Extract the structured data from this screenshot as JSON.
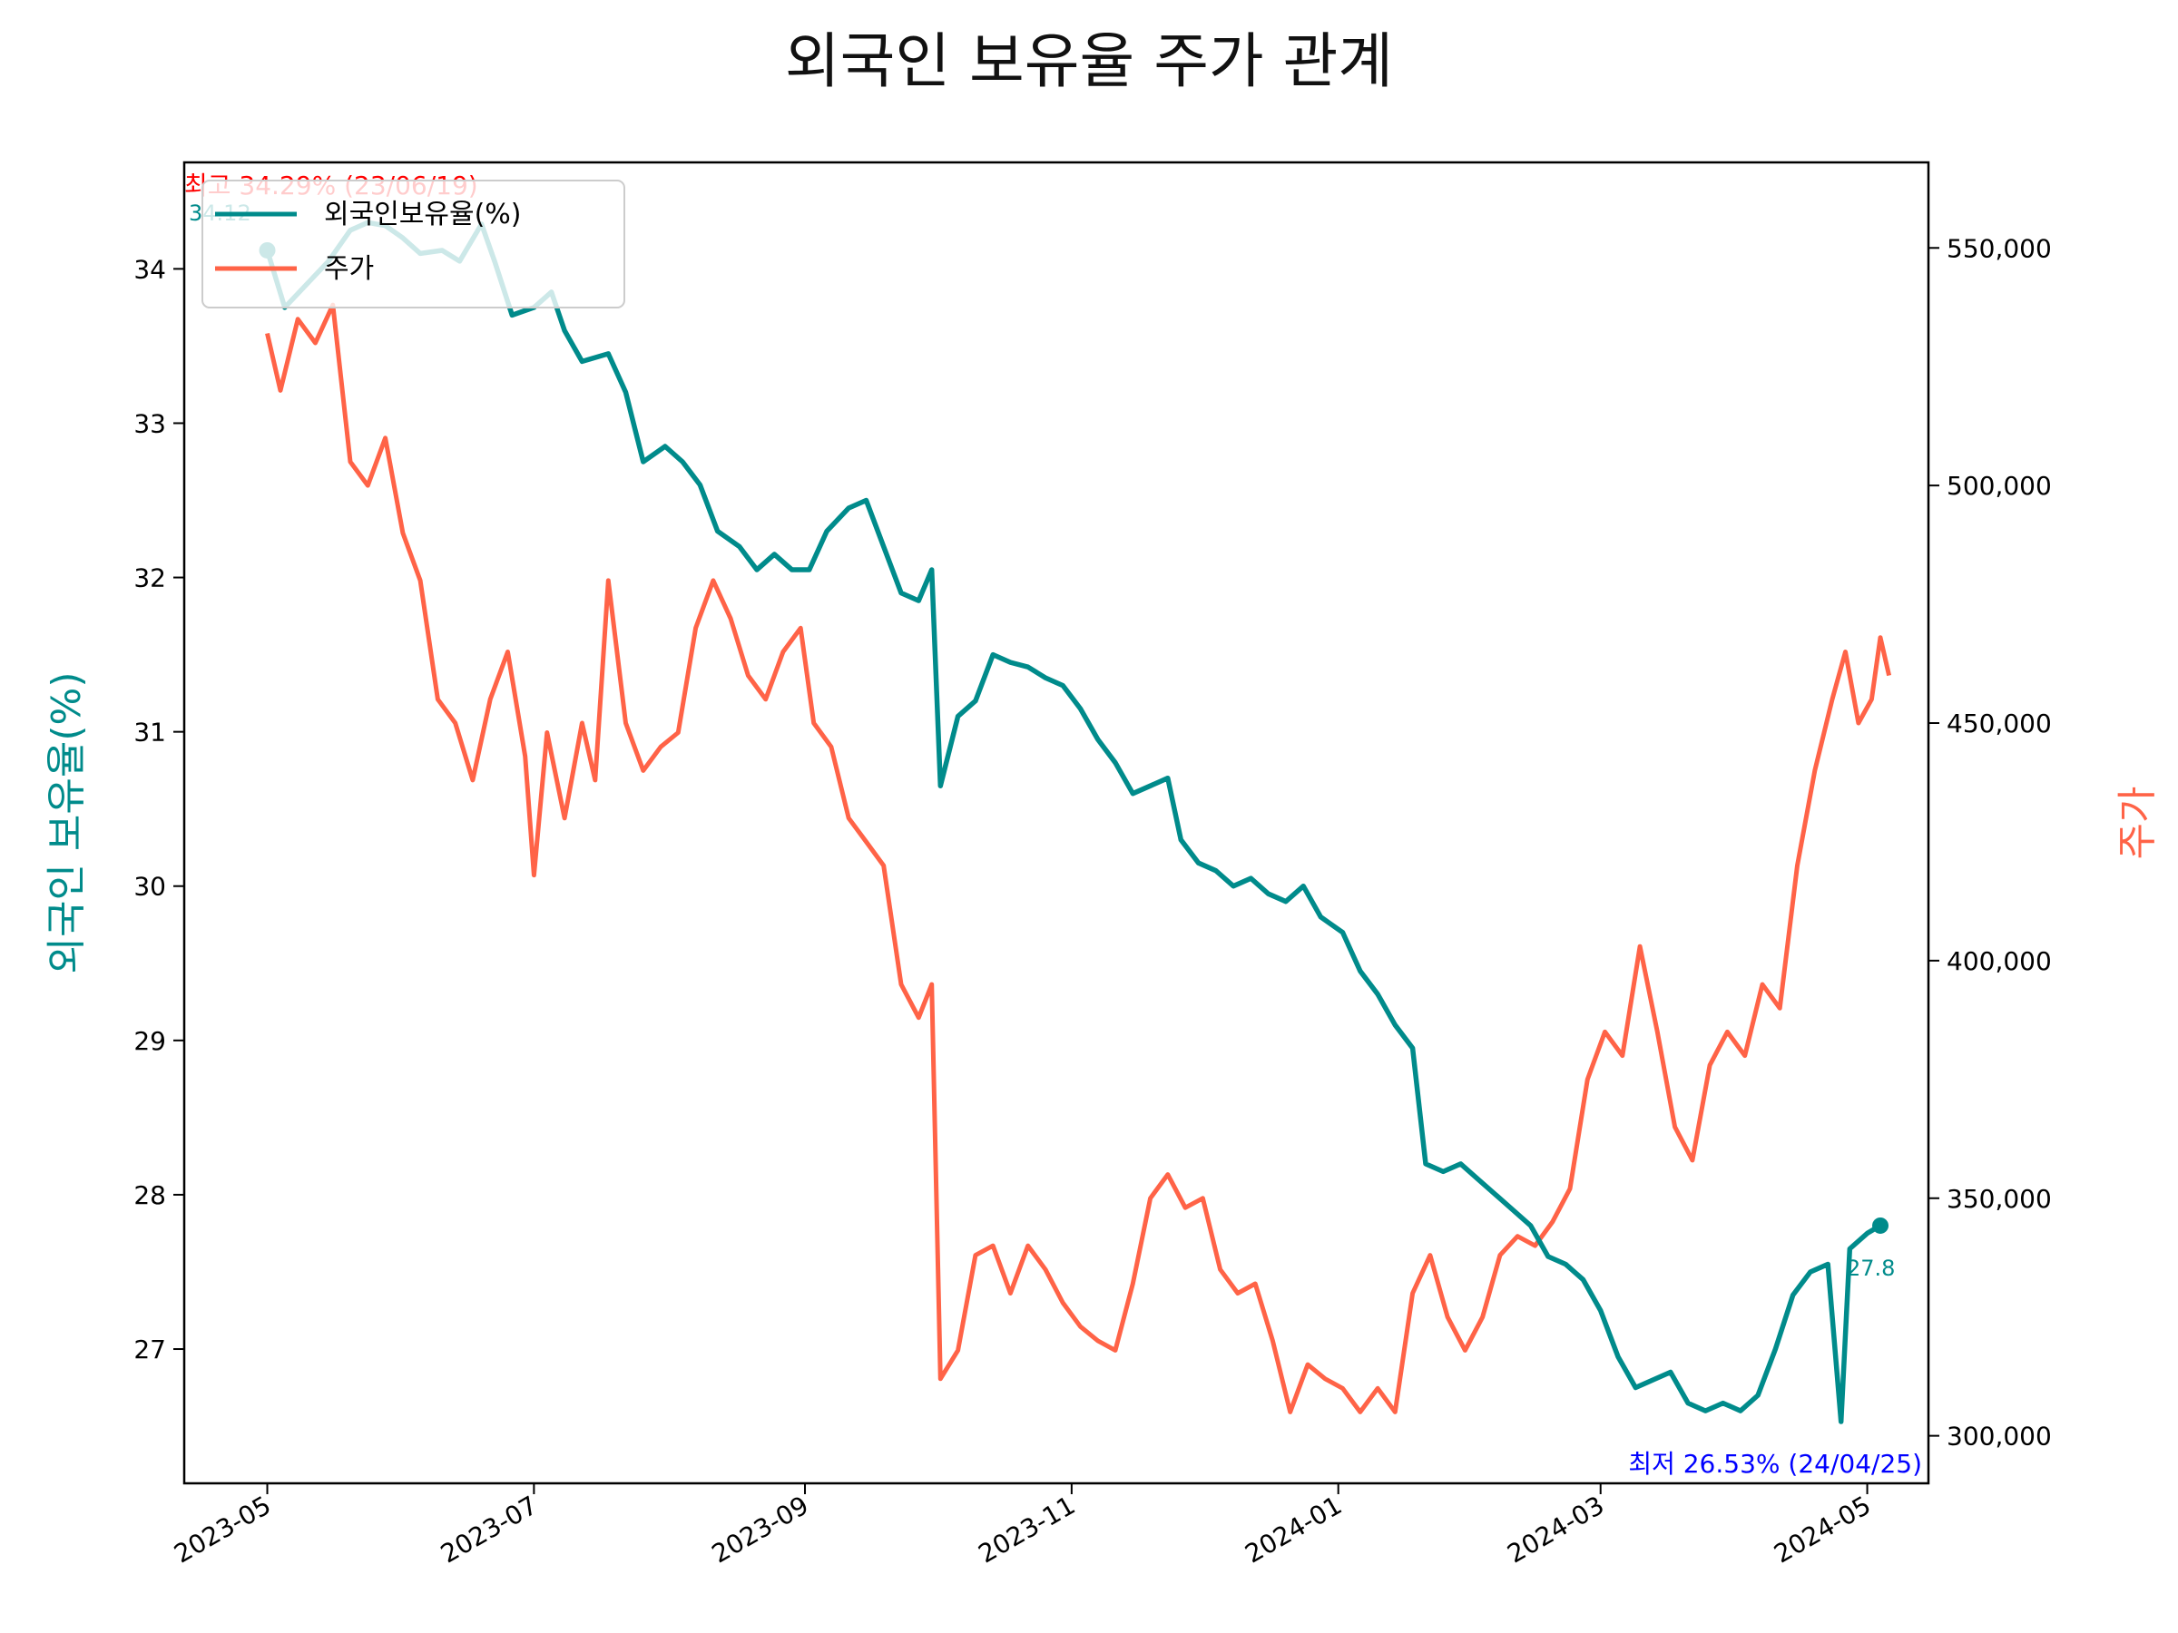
{
  "chart_data": {
    "type": "line",
    "title": "외국인 보유율 주가 관계",
    "y_left_label": "외국인 보유율(%)",
    "y_right_label": "주가",
    "y_left_range": [
      26.13,
      34.69
    ],
    "y_right_range": [
      290000,
      568000
    ],
    "x_range": [
      "2023-04-12",
      "2024-05-15"
    ],
    "x_ticks": [
      "2023-05",
      "2023-07",
      "2023-09",
      "2023-11",
      "2024-01",
      "2024-03",
      "2024-05"
    ],
    "y_left_ticks": [
      "27",
      "28",
      "29",
      "30",
      "31",
      "32",
      "33",
      "34"
    ],
    "y_right_ticks": [
      "300,000",
      "350,000",
      "400,000",
      "450,000",
      "500,000",
      "550,000"
    ],
    "grid": false,
    "legend_position": "upper-left",
    "colors": {
      "holding": "#008b8b",
      "price": "#ff6347",
      "max_annotation": "#ff0000",
      "min_annotation": "#0000ff"
    },
    "series": [
      {
        "name": "외국인보유율(%)",
        "axis": "left",
        "points": [
          [
            "2023-05-01",
            34.12
          ],
          [
            "2023-05-05",
            33.75
          ],
          [
            "2023-05-10",
            33.9
          ],
          [
            "2023-05-15",
            34.05
          ],
          [
            "2023-05-20",
            34.25
          ],
          [
            "2023-05-24",
            34.3
          ],
          [
            "2023-05-28",
            34.28
          ],
          [
            "2023-06-01",
            34.2
          ],
          [
            "2023-06-05",
            34.1
          ],
          [
            "2023-06-10",
            34.12
          ],
          [
            "2023-06-14",
            34.05
          ],
          [
            "2023-06-19",
            34.29
          ],
          [
            "2023-06-22",
            34.05
          ],
          [
            "2023-06-26",
            33.7
          ],
          [
            "2023-07-01",
            33.75
          ],
          [
            "2023-07-05",
            33.85
          ],
          [
            "2023-07-08",
            33.6
          ],
          [
            "2023-07-12",
            33.4
          ],
          [
            "2023-07-18",
            33.45
          ],
          [
            "2023-07-22",
            33.2
          ],
          [
            "2023-07-26",
            32.75
          ],
          [
            "2023-07-31",
            32.85
          ],
          [
            "2023-08-04",
            32.75
          ],
          [
            "2023-08-08",
            32.6
          ],
          [
            "2023-08-12",
            32.3
          ],
          [
            "2023-08-17",
            32.2
          ],
          [
            "2023-08-21",
            32.05
          ],
          [
            "2023-08-25",
            32.15
          ],
          [
            "2023-08-29",
            32.05
          ],
          [
            "2023-09-02",
            32.05
          ],
          [
            "2023-09-06",
            32.3
          ],
          [
            "2023-09-11",
            32.45
          ],
          [
            "2023-09-15",
            32.5
          ],
          [
            "2023-09-19",
            32.2
          ],
          [
            "2023-09-23",
            31.9
          ],
          [
            "2023-09-27",
            31.85
          ],
          [
            "2023-09-30",
            32.05
          ],
          [
            "2023-10-02",
            30.65
          ],
          [
            "2023-10-06",
            31.1
          ],
          [
            "2023-10-10",
            31.2
          ],
          [
            "2023-10-14",
            31.5
          ],
          [
            "2023-10-18",
            31.45
          ],
          [
            "2023-10-22",
            31.42
          ],
          [
            "2023-10-26",
            31.35
          ],
          [
            "2023-10-30",
            31.3
          ],
          [
            "2023-11-03",
            31.15
          ],
          [
            "2023-11-07",
            30.95
          ],
          [
            "2023-11-11",
            30.8
          ],
          [
            "2023-11-15",
            30.6
          ],
          [
            "2023-11-19",
            30.65
          ],
          [
            "2023-11-23",
            30.7
          ],
          [
            "2023-11-26",
            30.3
          ],
          [
            "2023-11-30",
            30.15
          ],
          [
            "2023-12-04",
            30.1
          ],
          [
            "2023-12-08",
            30.0
          ],
          [
            "2023-12-12",
            30.05
          ],
          [
            "2023-12-16",
            29.95
          ],
          [
            "2023-12-20",
            29.9
          ],
          [
            "2023-12-24",
            30.0
          ],
          [
            "2023-12-28",
            29.8
          ],
          [
            "2024-01-02",
            29.7
          ],
          [
            "2024-01-06",
            29.45
          ],
          [
            "2024-01-10",
            29.3
          ],
          [
            "2024-01-14",
            29.1
          ],
          [
            "2024-01-18",
            28.95
          ],
          [
            "2024-01-21",
            28.2
          ],
          [
            "2024-01-25",
            28.15
          ],
          [
            "2024-01-29",
            28.2
          ],
          [
            "2024-02-02",
            28.1
          ],
          [
            "2024-02-06",
            28.0
          ],
          [
            "2024-02-10",
            27.9
          ],
          [
            "2024-02-14",
            27.8
          ],
          [
            "2024-02-18",
            27.6
          ],
          [
            "2024-02-22",
            27.55
          ],
          [
            "2024-02-26",
            27.45
          ],
          [
            "2024-03-01",
            27.25
          ],
          [
            "2024-03-05",
            26.95
          ],
          [
            "2024-03-09",
            26.75
          ],
          [
            "2024-03-13",
            26.8
          ],
          [
            "2024-03-17",
            26.85
          ],
          [
            "2024-03-21",
            26.65
          ],
          [
            "2024-03-25",
            26.6
          ],
          [
            "2024-03-29",
            26.65
          ],
          [
            "2024-04-02",
            26.6
          ],
          [
            "2024-04-06",
            26.7
          ],
          [
            "2024-04-10",
            27.0
          ],
          [
            "2024-04-14",
            27.35
          ],
          [
            "2024-04-18",
            27.5
          ],
          [
            "2024-04-22",
            27.55
          ],
          [
            "2024-04-25",
            26.53
          ],
          [
            "2024-04-27",
            27.65
          ],
          [
            "2024-05-01",
            27.75
          ],
          [
            "2024-05-04",
            27.8
          ]
        ]
      },
      {
        "name": "주가",
        "axis": "right",
        "points": [
          [
            "2023-05-01",
            532000
          ],
          [
            "2023-05-04",
            520000
          ],
          [
            "2023-05-08",
            535000
          ],
          [
            "2023-05-12",
            530000
          ],
          [
            "2023-05-16",
            538000
          ],
          [
            "2023-05-20",
            505000
          ],
          [
            "2023-05-24",
            500000
          ],
          [
            "2023-05-28",
            510000
          ],
          [
            "2023-06-01",
            490000
          ],
          [
            "2023-06-05",
            480000
          ],
          [
            "2023-06-09",
            455000
          ],
          [
            "2023-06-13",
            450000
          ],
          [
            "2023-06-17",
            438000
          ],
          [
            "2023-06-21",
            455000
          ],
          [
            "2023-06-25",
            465000
          ],
          [
            "2023-06-29",
            443000
          ],
          [
            "2023-07-01",
            418000
          ],
          [
            "2023-07-04",
            448000
          ],
          [
            "2023-07-08",
            430000
          ],
          [
            "2023-07-12",
            450000
          ],
          [
            "2023-07-15",
            438000
          ],
          [
            "2023-07-18",
            480000
          ],
          [
            "2023-07-22",
            450000
          ],
          [
            "2023-07-26",
            440000
          ],
          [
            "2023-07-30",
            445000
          ],
          [
            "2023-08-03",
            448000
          ],
          [
            "2023-08-07",
            470000
          ],
          [
            "2023-08-11",
            480000
          ],
          [
            "2023-08-15",
            472000
          ],
          [
            "2023-08-19",
            460000
          ],
          [
            "2023-08-23",
            455000
          ],
          [
            "2023-08-27",
            465000
          ],
          [
            "2023-08-31",
            470000
          ],
          [
            "2023-09-03",
            450000
          ],
          [
            "2023-09-07",
            445000
          ],
          [
            "2023-09-11",
            430000
          ],
          [
            "2023-09-15",
            425000
          ],
          [
            "2023-09-19",
            420000
          ],
          [
            "2023-09-23",
            395000
          ],
          [
            "2023-09-27",
            388000
          ],
          [
            "2023-09-30",
            395000
          ],
          [
            "2023-10-02",
            312000
          ],
          [
            "2023-10-06",
            318000
          ],
          [
            "2023-10-10",
            338000
          ],
          [
            "2023-10-14",
            340000
          ],
          [
            "2023-10-18",
            330000
          ],
          [
            "2023-10-22",
            340000
          ],
          [
            "2023-10-26",
            335000
          ],
          [
            "2023-10-30",
            328000
          ],
          [
            "2023-11-03",
            323000
          ],
          [
            "2023-11-07",
            320000
          ],
          [
            "2023-11-11",
            318000
          ],
          [
            "2023-11-15",
            332000
          ],
          [
            "2023-11-19",
            350000
          ],
          [
            "2023-11-23",
            355000
          ],
          [
            "2023-11-27",
            348000
          ],
          [
            "2023-12-01",
            350000
          ],
          [
            "2023-12-05",
            335000
          ],
          [
            "2023-12-09",
            330000
          ],
          [
            "2023-12-13",
            332000
          ],
          [
            "2023-12-17",
            320000
          ],
          [
            "2023-12-21",
            305000
          ],
          [
            "2023-12-25",
            315000
          ],
          [
            "2023-12-29",
            312000
          ],
          [
            "2024-01-02",
            310000
          ],
          [
            "2024-01-06",
            305000
          ],
          [
            "2024-01-10",
            310000
          ],
          [
            "2024-01-14",
            305000
          ],
          [
            "2024-01-18",
            330000
          ],
          [
            "2024-01-22",
            338000
          ],
          [
            "2024-01-26",
            325000
          ],
          [
            "2024-01-30",
            318000
          ],
          [
            "2024-02-03",
            325000
          ],
          [
            "2024-02-07",
            338000
          ],
          [
            "2024-02-11",
            342000
          ],
          [
            "2024-02-15",
            340000
          ],
          [
            "2024-02-19",
            345000
          ],
          [
            "2024-02-23",
            352000
          ],
          [
            "2024-02-27",
            375000
          ],
          [
            "2024-03-02",
            385000
          ],
          [
            "2024-03-06",
            380000
          ],
          [
            "2024-03-10",
            403000
          ],
          [
            "2024-03-14",
            385000
          ],
          [
            "2024-03-18",
            365000
          ],
          [
            "2024-03-22",
            358000
          ],
          [
            "2024-03-26",
            378000
          ],
          [
            "2024-03-30",
            385000
          ],
          [
            "2024-04-03",
            380000
          ],
          [
            "2024-04-07",
            395000
          ],
          [
            "2024-04-11",
            390000
          ],
          [
            "2024-04-15",
            420000
          ],
          [
            "2024-04-19",
            440000
          ],
          [
            "2024-04-23",
            455000
          ],
          [
            "2024-04-26",
            465000
          ],
          [
            "2024-04-29",
            450000
          ],
          [
            "2024-05-02",
            455000
          ],
          [
            "2024-05-04",
            468000
          ],
          [
            "2024-05-06",
            460000
          ]
        ]
      }
    ],
    "annotations": {
      "max_label": "최고 34.29% (23/06/19)",
      "min_label": "최저 26.53% (24/04/25)",
      "start_label": "34.12",
      "end_label": "27.8"
    }
  }
}
